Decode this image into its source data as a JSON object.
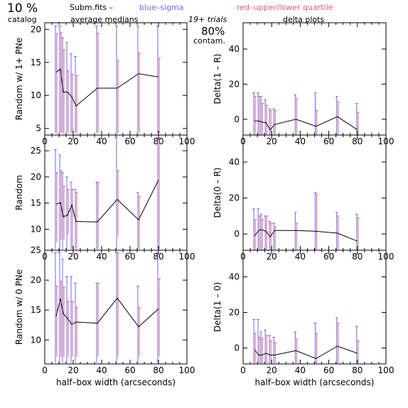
{
  "header": {
    "pct_left": "10 %",
    "catalog": "catalog",
    "subm": "Subm.fits  –",
    "blue": "blue–sigma",
    "red": "red–upper/lower quartile",
    "avg_medians": "average medians",
    "trials": "19+ trials",
    "pct_center": "80%",
    "contam": "contam.",
    "delta_plots": "delta plots"
  },
  "colors": {
    "sigma": "#6a6af0",
    "quartile": "#e05a82",
    "line": "#000000"
  },
  "chart_data": [
    {
      "type": "line",
      "panel": "top-left",
      "ylabel": "Random w/ 1+ PNe",
      "xlabel": "",
      "xlim": [
        0,
        100
      ],
      "ylim": [
        4,
        21
      ],
      "xticks": [
        0,
        20,
        40,
        60,
        80,
        100
      ],
      "yticks": [
        5,
        10,
        15,
        20
      ],
      "x": [
        8,
        11,
        13,
        16,
        19,
        22,
        37,
        51,
        66,
        80
      ],
      "y": [
        13.5,
        14,
        10.5,
        10.5,
        9.8,
        8.4,
        11.1,
        11.1,
        13.3,
        12.8
      ],
      "sigma": [
        [
          4.3,
          20.5
        ],
        [
          4.3,
          20.5
        ],
        [
          4.3,
          18.7
        ],
        [
          4.3,
          18.0
        ],
        [
          4.3,
          16.3
        ],
        [
          4.3,
          15.9
        ],
        [
          4.3,
          20.5
        ],
        [
          4.3,
          20.5
        ],
        [
          4.3,
          20.5
        ],
        [
          4.3,
          20.5
        ]
      ],
      "quartile": [
        [
          4.3,
          19.3
        ],
        [
          4.3,
          19.5
        ],
        [
          4.3,
          16.9
        ],
        [
          4.3,
          13.7
        ],
        [
          4.3,
          13.2
        ],
        [
          4.3,
          13.0
        ],
        [
          4.3,
          19.4
        ],
        [
          4.3,
          15.3
        ],
        [
          4.3,
          16.4
        ],
        [
          4.3,
          15.6
        ]
      ]
    },
    {
      "type": "line",
      "panel": "top-right",
      "ylabel": "Delta(1 – R)",
      "xlabel": "",
      "xlim": [
        0,
        100
      ],
      "ylim": [
        -9,
        55
      ],
      "xticks": [
        0,
        20,
        40,
        60,
        80,
        100
      ],
      "yticks": [
        0,
        20,
        40
      ],
      "x": [
        8,
        11,
        13,
        16,
        19,
        22,
        37,
        51,
        66,
        80
      ],
      "y": [
        -1,
        -1,
        -1.5,
        -2,
        -6,
        -3,
        0,
        -4,
        1.5,
        -6
      ],
      "sigma": [
        [
          -9,
          15
        ],
        [
          -9,
          15
        ],
        [
          -9,
          13
        ],
        [
          -9,
          11
        ],
        [
          -9,
          6
        ],
        [
          -9,
          6
        ],
        [
          -9,
          14
        ],
        [
          -9,
          15
        ],
        [
          -9,
          13
        ],
        [
          -9,
          9
        ]
      ],
      "quartile": [
        [
          -9,
          13
        ],
        [
          -9,
          13
        ],
        [
          -9,
          9
        ],
        [
          -9,
          8
        ],
        [
          -9,
          5
        ],
        [
          -9,
          5
        ],
        [
          -9,
          12
        ],
        [
          -9,
          5
        ],
        [
          -9,
          10
        ],
        [
          -9,
          4
        ]
      ]
    },
    {
      "type": "line",
      "panel": "middle-left",
      "ylabel": "Random",
      "xlabel": "",
      "xlim": [
        0,
        100
      ],
      "ylim": [
        6,
        28
      ],
      "xticks": [
        0,
        20,
        40,
        60,
        80,
        100
      ],
      "yticks": [
        10,
        15,
        20,
        25
      ],
      "x": [
        8,
        11,
        13,
        16,
        19,
        22,
        37,
        51,
        66,
        80
      ],
      "y": [
        14.8,
        15.1,
        12.4,
        12.7,
        14.6,
        11.5,
        11.4,
        15.7,
        11.8,
        19.4
      ],
      "sigma": [
        [
          6.2,
          25.2
        ],
        [
          6.2,
          24.2
        ],
        [
          6.2,
          20.8
        ],
        [
          6.2,
          20.0
        ],
        [
          6.2,
          19.0
        ],
        [
          6.2,
          17.6
        ],
        [
          6.2,
          19.0
        ],
        [
          6.2,
          27.5
        ],
        [
          6.2,
          17.0
        ],
        [
          6.2,
          27.5
        ]
      ],
      "quartile": [
        [
          7.6,
          20.8
        ],
        [
          8.0,
          21.2
        ],
        [
          8.0,
          18.2
        ],
        [
          9.0,
          17.6
        ],
        [
          6.2,
          17.6
        ],
        [
          6.2,
          17.0
        ],
        [
          6.2,
          18.9
        ],
        [
          8.6,
          21.2
        ],
        [
          6.2,
          16.3
        ],
        [
          6.2,
          27.5
        ]
      ]
    },
    {
      "type": "line",
      "panel": "middle-right",
      "ylabel": "Delta(0 – R)",
      "xlabel": "",
      "xlim": [
        0,
        100
      ],
      "ylim": [
        -9,
        55
      ],
      "xticks": [
        0,
        20,
        40,
        60,
        80,
        100
      ],
      "yticks": [
        0,
        20,
        40
      ],
      "x": [
        8,
        11,
        13,
        16,
        19,
        22,
        37,
        51,
        66,
        80
      ],
      "y": [
        -1,
        2,
        2.5,
        1.5,
        -1.5,
        2,
        2,
        1.5,
        0.5,
        -4
      ],
      "sigma": [
        [
          -9,
          14
        ],
        [
          -9,
          14
        ],
        [
          -9,
          11
        ],
        [
          -9,
          10
        ],
        [
          -9,
          7
        ],
        [
          -9,
          6
        ],
        [
          -9,
          12
        ],
        [
          -9,
          23
        ],
        [
          -9,
          12
        ],
        [
          -9,
          11
        ]
      ],
      "quartile": [
        [
          -9,
          8
        ],
        [
          -9,
          10
        ],
        [
          -9,
          8
        ],
        [
          -9,
          10
        ],
        [
          -9,
          6
        ],
        [
          -9,
          4
        ],
        [
          -9,
          6
        ],
        [
          -9,
          22
        ],
        [
          -9,
          10
        ],
        [
          -9,
          9
        ]
      ]
    },
    {
      "type": "line",
      "panel": "bottom-left",
      "ylabel": "Random w/ 0 PNe",
      "xlabel": "half–box width (arcseconds)",
      "xlim": [
        0,
        100
      ],
      "ylim": [
        6,
        25
      ],
      "xticks": [
        0,
        20,
        40,
        60,
        80,
        100
      ],
      "xticklabels": [
        "0",
        "20",
        "40",
        "60",
        "80",
        "100"
      ],
      "yticks": [
        10,
        15,
        20,
        25
      ],
      "x": [
        8,
        11,
        13,
        16,
        19,
        22,
        37,
        51,
        66,
        80
      ],
      "y": [
        14,
        16.9,
        14.4,
        13.6,
        12.6,
        13,
        12.8,
        17.0,
        12.2,
        15.2
      ],
      "sigma": [
        [
          6.2,
          24.6
        ],
        [
          6.2,
          24.6
        ],
        [
          6.2,
          23.5
        ],
        [
          6.2,
          20.6
        ],
        [
          6.2,
          20.6
        ],
        [
          6.2,
          19.5
        ],
        [
          6.2,
          19.5
        ],
        [
          6.2,
          24.6
        ],
        [
          6.2,
          19.0
        ],
        [
          6.2,
          24.6
        ]
      ],
      "quartile": [
        [
          7.2,
          19.0
        ],
        [
          7.2,
          19.8
        ],
        [
          7.2,
          18.8
        ],
        [
          7.2,
          16.4
        ],
        [
          7.2,
          16.4
        ],
        [
          7.2,
          15.5
        ],
        [
          7.2,
          19.5
        ],
        [
          7.2,
          24.6
        ],
        [
          7.2,
          15.4
        ],
        [
          7.2,
          20.2
        ]
      ]
    },
    {
      "type": "line",
      "panel": "bottom-right",
      "ylabel": "Delta(1 – 0)",
      "xlabel": "half–box width (arcseconds)",
      "xlim": [
        0,
        100
      ],
      "ylim": [
        -9,
        55
      ],
      "xticks": [
        0,
        20,
        40,
        60,
        80,
        100
      ],
      "xticklabels": [
        "0",
        "20",
        "40",
        "60",
        "80",
        "100"
      ],
      "yticks": [
        0,
        20,
        40
      ],
      "x": [
        8,
        11,
        13,
        16,
        19,
        22,
        37,
        51,
        66,
        80
      ],
      "y": [
        -1,
        -4,
        -4,
        -3,
        -4,
        -4,
        -1.5,
        -6,
        1,
        -3
      ],
      "sigma": [
        [
          -9,
          16
        ],
        [
          -9,
          16
        ],
        [
          -9,
          9
        ],
        [
          -9,
          10
        ],
        [
          -9,
          7
        ],
        [
          -9,
          6
        ],
        [
          -9,
          9
        ],
        [
          -9,
          14
        ],
        [
          -9,
          17
        ],
        [
          -9,
          12
        ]
      ],
      "quartile": [
        [
          -9,
          8
        ],
        [
          -9,
          6
        ],
        [
          -9,
          5
        ],
        [
          -9,
          7
        ],
        [
          -9,
          4
        ],
        [
          -9,
          3
        ],
        [
          -9,
          5
        ],
        [
          -9,
          8
        ],
        [
          -9,
          14
        ],
        [
          -9,
          4
        ]
      ]
    }
  ]
}
